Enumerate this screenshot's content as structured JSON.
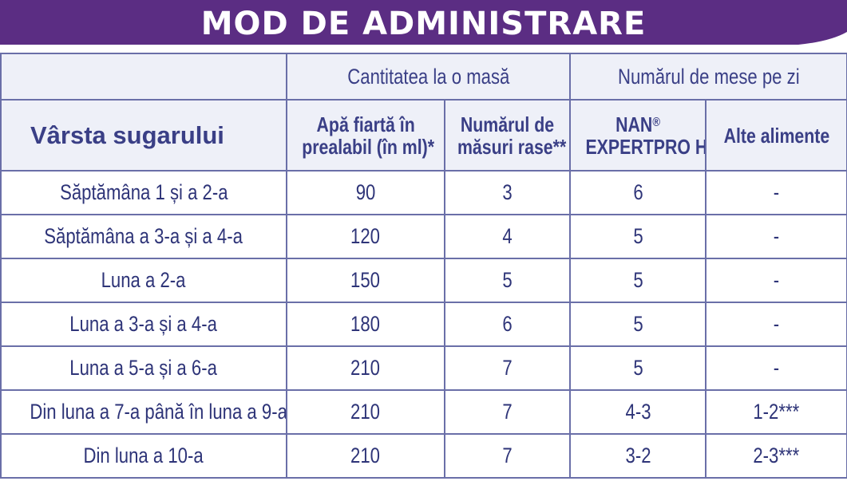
{
  "title": "MOD DE ADMINISTRARE",
  "colors": {
    "banner": "#5b2d83",
    "header_bg": "#eef0f8",
    "text": "#3a3f86",
    "border": "#6a6fa8"
  },
  "table": {
    "group_headers": {
      "quantity": "Cantitatea la o masă",
      "meals": "Numărul de mese pe zi"
    },
    "column_headers": {
      "age": "Vârsta sugarului",
      "water_line1": "Apă fiartă în",
      "water_line2": "prealabil (în ml)*",
      "scoops_line1": "Numărul de",
      "scoops_line2": "măsuri rase**",
      "nan_line1": "NAN",
      "nan_reg": "®",
      "nan_line2": "EXPERTPRO HA",
      "other": "Alte alimente"
    },
    "rows": [
      {
        "age": "Săptămâna 1 și a 2-a",
        "water": "90",
        "scoops": "3",
        "nan": "6",
        "other": "-"
      },
      {
        "age": "Săptămâna a 3-a și a 4-a",
        "water": "120",
        "scoops": "4",
        "nan": "5",
        "other": "-"
      },
      {
        "age": "Luna a 2-a",
        "water": "150",
        "scoops": "5",
        "nan": "5",
        "other": "-"
      },
      {
        "age": "Luna a 3-a și a 4-a",
        "water": "180",
        "scoops": "6",
        "nan": "5",
        "other": "-"
      },
      {
        "age": "Luna a 5-a și a 6-a",
        "water": "210",
        "scoops": "7",
        "nan": "5",
        "other": "-"
      },
      {
        "age": "Din luna a 7-a până în luna a 9-a",
        "water": "210",
        "scoops": "7",
        "nan": "4-3",
        "other": "1-2***"
      },
      {
        "age": "Din luna a 10-a",
        "water": "210",
        "scoops": "7",
        "nan": "3-2",
        "other": "2-3***"
      }
    ]
  }
}
